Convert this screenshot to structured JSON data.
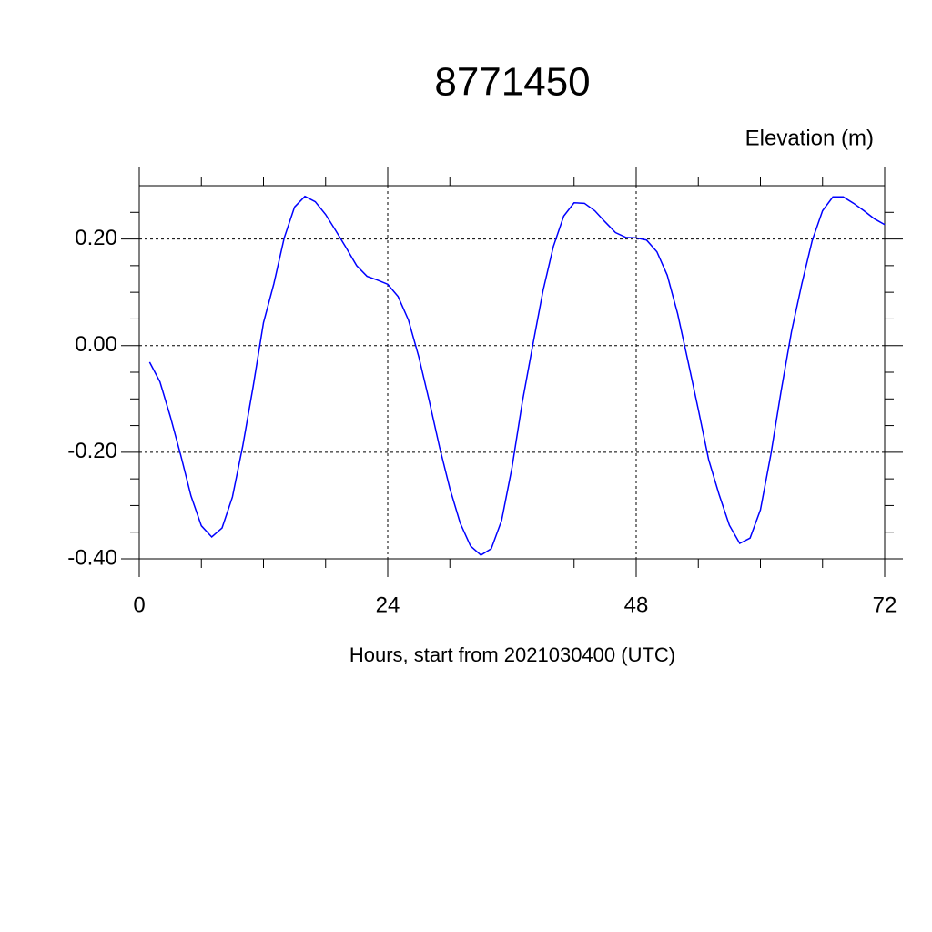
{
  "chart_data": {
    "type": "line",
    "title": "8771450",
    "subtitle": "Elevation (m)",
    "x_label": "Hours, start from 2021030400 (UTC)",
    "x": [
      1,
      2,
      3,
      4,
      5,
      6,
      7,
      8,
      9,
      10,
      11,
      12,
      13,
      14,
      15,
      16,
      17,
      18,
      19,
      20,
      21,
      22,
      23,
      24,
      25,
      26,
      27,
      28,
      29,
      30,
      31,
      32,
      33,
      34,
      35,
      36,
      37,
      38,
      39,
      40,
      41,
      42,
      43,
      44,
      45,
      46,
      47,
      48,
      49,
      50,
      51,
      52,
      53,
      54,
      55,
      56,
      57,
      58,
      59,
      60,
      61,
      62,
      63,
      64,
      65,
      66,
      67,
      68,
      69,
      70,
      71,
      72
    ],
    "series": [
      {
        "color": "#0000ff",
        "values": [
          -0.031,
          -0.068,
          -0.133,
          -0.205,
          -0.282,
          -0.338,
          -0.359,
          -0.342,
          -0.284,
          -0.188,
          -0.077,
          0.043,
          0.116,
          0.202,
          0.26,
          0.28,
          0.27,
          0.246,
          0.215,
          0.183,
          0.15,
          0.13,
          0.123,
          0.115,
          0.092,
          0.048,
          -0.021,
          -0.103,
          -0.19,
          -0.268,
          -0.333,
          -0.376,
          -0.393,
          -0.381,
          -0.328,
          -0.229,
          -0.106,
          0.0,
          0.103,
          0.186,
          0.243,
          0.268,
          0.267,
          0.253,
          0.232,
          0.212,
          0.203,
          0.202,
          0.198,
          0.176,
          0.132,
          0.06,
          -0.029,
          -0.12,
          -0.214,
          -0.279,
          -0.337,
          -0.371,
          -0.361,
          -0.308,
          -0.205,
          -0.085,
          0.026,
          0.116,
          0.197,
          0.253,
          0.279,
          0.279,
          0.267,
          0.253,
          0.238,
          0.227
        ]
      }
    ],
    "xlim": [
      0,
      72
    ],
    "xticks": [
      0,
      24,
      48,
      72
    ],
    "xminorticks": [
      6,
      12,
      18,
      30,
      36,
      42,
      54,
      60,
      66
    ],
    "ylim": [
      -0.4,
      0.3
    ],
    "yticks": [
      {
        "value": -0.4,
        "label": "-0.40"
      },
      {
        "value": -0.2,
        "label": "-0.20"
      },
      {
        "value": 0,
        "label": "0.00"
      },
      {
        "value": 0.2,
        "label": "0.20"
      }
    ],
    "yminorticks": [
      -0.35,
      -0.3,
      -0.25,
      -0.15,
      -0.1,
      -0.05,
      0.05,
      0.1,
      0.15,
      0.25
    ],
    "grid": true
  }
}
